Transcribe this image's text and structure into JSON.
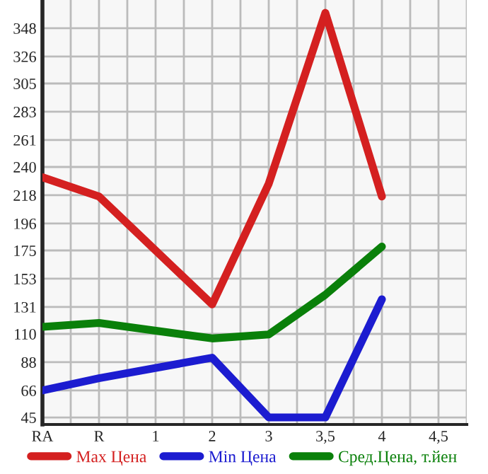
{
  "chart_data": {
    "type": "line",
    "categories": [
      "RA",
      "R",
      "1",
      "2",
      "3",
      "3,5",
      "4",
      "4,5"
    ],
    "series": [
      {
        "name": "Max Цена",
        "color": "#d42020",
        "values": [
          232,
          217,
          null,
          133,
          227,
          360,
          217,
          null
        ]
      },
      {
        "name": "Min Цена",
        "color": "#1c1cd0",
        "values": [
          66,
          75.5,
          null,
          91.5,
          45,
          45,
          137,
          null
        ]
      },
      {
        "name": "Сред.Цена, т.йен",
        "color": "#0a800a",
        "values": [
          115.5,
          118.5,
          null,
          106.5,
          109.6,
          140.5,
          178,
          null
        ]
      }
    ],
    "ylim": [
      39.5,
      370
    ],
    "yticks": [
      45,
      66,
      88,
      110,
      131,
      153,
      175,
      196,
      218,
      240,
      261,
      283,
      305,
      326,
      348
    ],
    "grid": true,
    "legend": "bottom",
    "marker": "none",
    "line_style": "solid"
  }
}
